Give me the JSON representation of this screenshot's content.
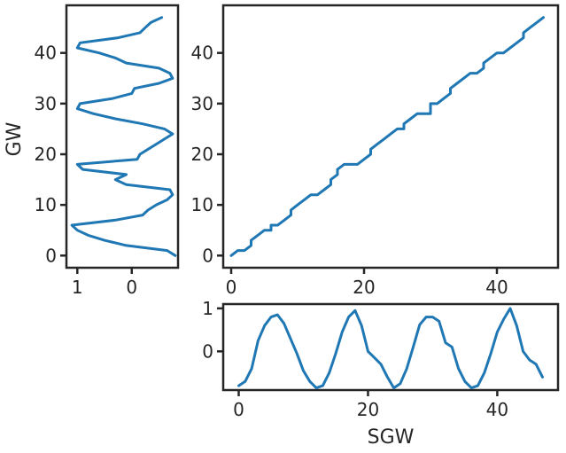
{
  "colors": {
    "line": "#1f77b4",
    "axis": "#262626",
    "background": "#ffffff"
  },
  "chart_data": [
    {
      "id": "warp-path",
      "type": "line",
      "title": "",
      "xlabel": "",
      "ylabel": "",
      "xlim": [
        -1.2,
        49.2
      ],
      "ylim": [
        -2.4,
        49.4
      ],
      "xticks": [
        0,
        20,
        40
      ],
      "yticks": [
        0,
        10,
        20,
        30,
        40
      ],
      "grid": false,
      "x": [
        0,
        1,
        2,
        3,
        3,
        4,
        5,
        6,
        6,
        7,
        8,
        9,
        9,
        10,
        11,
        12,
        13,
        14,
        15,
        15,
        16,
        16,
        17,
        18,
        19,
        20,
        21,
        21,
        22,
        23,
        24,
        25,
        26,
        26,
        27,
        28,
        29,
        30,
        30,
        31,
        32,
        33,
        33,
        34,
        35,
        36,
        37,
        38,
        38,
        39,
        40,
        41,
        42,
        43,
        44,
        44,
        45,
        46,
        47
      ],
      "y": [
        0,
        1,
        1,
        2,
        3,
        4,
        5,
        5,
        6,
        6,
        7,
        8,
        9,
        10,
        11,
        12,
        12,
        13,
        14,
        15,
        16,
        17,
        18,
        18,
        18,
        19,
        20,
        21,
        22,
        23,
        24,
        25,
        25,
        26,
        27,
        28,
        28,
        28,
        30,
        30,
        31,
        32,
        33,
        34,
        35,
        36,
        36,
        37,
        38,
        39,
        40,
        40,
        41,
        42,
        43,
        44,
        45,
        46,
        47
      ]
    },
    {
      "id": "query-series",
      "type": "line",
      "title": "",
      "xlabel": "SGW",
      "ylabel": "",
      "xlim": [
        -2.4,
        49.4
      ],
      "ylim": [
        -0.9,
        1.1
      ],
      "xticks": [
        0,
        20,
        40
      ],
      "yticks": [
        1,
        0
      ],
      "grid": false,
      "x": [
        0,
        1,
        2,
        3,
        4,
        5,
        6,
        7,
        8,
        9,
        10,
        11,
        12,
        13,
        14,
        15,
        16,
        17,
        18,
        19,
        20,
        21,
        22,
        23,
        24,
        25,
        26,
        27,
        28,
        29,
        30,
        31,
        32,
        33,
        34,
        35,
        36,
        37,
        38,
        39,
        40,
        41,
        42,
        43,
        44,
        45,
        46,
        47
      ],
      "y": [
        -0.8,
        -0.7,
        -0.4,
        0.25,
        0.6,
        0.8,
        0.85,
        0.65,
        0.3,
        -0.05,
        -0.45,
        -0.7,
        -0.85,
        -0.8,
        -0.5,
        -0.05,
        0.45,
        0.8,
        0.95,
        0.6,
        0.0,
        -0.15,
        -0.3,
        -0.6,
        -0.85,
        -0.75,
        -0.4,
        0.1,
        0.62,
        0.8,
        0.8,
        0.7,
        0.2,
        0.1,
        -0.4,
        -0.7,
        -0.85,
        -0.8,
        -0.5,
        -0.05,
        0.45,
        0.75,
        1.0,
        0.6,
        0.0,
        -0.2,
        -0.3,
        -0.6
      ]
    },
    {
      "id": "reference-series",
      "type": "line",
      "title": "",
      "xlabel": "",
      "ylabel": "GW",
      "orientation": "vertical",
      "xlim": [
        1.2,
        -0.85
      ],
      "ylim": [
        -2.4,
        49.4
      ],
      "xticks": [
        1,
        0
      ],
      "yticks": [
        0,
        10,
        20,
        30,
        40
      ],
      "grid": false,
      "y": [
        0,
        1,
        2,
        3,
        4,
        5,
        6,
        7,
        8,
        9,
        10,
        11,
        12,
        13,
        14,
        15,
        16,
        17,
        18,
        19,
        20,
        21,
        22,
        23,
        24,
        25,
        26,
        27,
        28,
        29,
        30,
        31,
        32,
        33,
        34,
        35,
        36,
        37,
        38,
        39,
        40,
        41,
        42,
        43,
        44,
        45,
        46,
        47
      ],
      "x": [
        -0.8,
        -0.65,
        0.1,
        0.5,
        0.8,
        1.0,
        1.1,
        0.3,
        -0.2,
        -0.3,
        -0.45,
        -0.65,
        -0.75,
        -0.7,
        0.1,
        0.3,
        0.1,
        0.9,
        1.0,
        -0.1,
        -0.15,
        -0.3,
        -0.45,
        -0.6,
        -0.75,
        -0.6,
        -0.2,
        0.3,
        0.7,
        1.0,
        0.95,
        0.35,
        0.0,
        -0.05,
        -0.5,
        -0.75,
        -0.7,
        -0.5,
        0.1,
        0.3,
        0.6,
        1.0,
        0.95,
        0.25,
        -0.15,
        -0.25,
        -0.35,
        -0.55
      ]
    }
  ]
}
